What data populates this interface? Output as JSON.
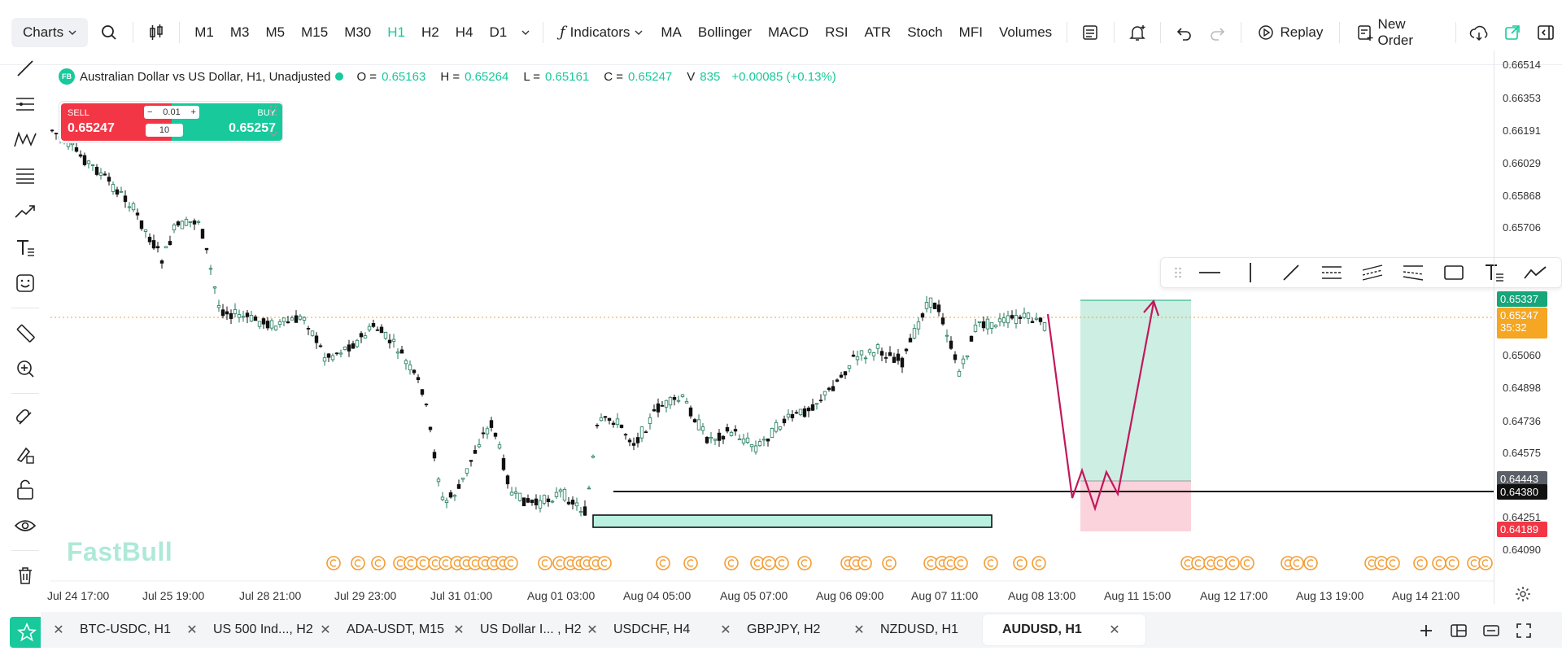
{
  "topbar": {
    "charts_label": "Charts",
    "timeframes": [
      "M1",
      "M3",
      "M5",
      "M15",
      "M30",
      "H1",
      "H2",
      "H4",
      "D1"
    ],
    "active_timeframe": "H1",
    "indicators_label": "Indicators",
    "indicator_shortcuts": [
      "MA",
      "Bollinger",
      "MACD",
      "RSI",
      "ATR",
      "Stoch",
      "MFI",
      "Volumes"
    ],
    "replay_label": "Replay",
    "new_order_label": "New Order"
  },
  "legend": {
    "badge": "FB",
    "symbol_title": "Australian Dollar vs US Dollar, H1, Unadjusted",
    "o_label": "O =",
    "o_value": "0.65163",
    "h_label": "H =",
    "h_value": "0.65264",
    "l_label": "L =",
    "l_value": "0.65161",
    "c_label": "C =",
    "c_value": "0.65247",
    "v_label": "V",
    "v_value": "835",
    "change": "+0.00085 (+0.13%)"
  },
  "trade_panel": {
    "sell_label": "SELL",
    "sell_price": "0.65247",
    "buy_label": "BUY",
    "buy_price": "0.65257",
    "lot": "0.01",
    "quantity": "10",
    "minus": "−",
    "plus": "+"
  },
  "watermark": "FastBull",
  "price_axis": {
    "ticks": [
      "0.66514",
      "0.66353",
      "0.66191",
      "0.66029",
      "0.65868",
      "0.65706",
      "0.65060",
      "0.64898",
      "0.64736",
      "0.64575",
      "0.64251",
      "0.64090"
    ],
    "tag_tp": "0.65337",
    "tag_current": "0.65247",
    "tag_countdown": "35:32",
    "tag_entry": "0.64443",
    "tag_line": "0.64380",
    "tag_sl": "0.64189"
  },
  "time_axis": [
    "Jul 24 17:00",
    "Jul 25 19:00",
    "Jul 28 21:00",
    "Jul 29 23:00",
    "Jul 31 01:00",
    "Aug 01 03:00",
    "Aug 04 05:00",
    "Aug 05 07:00",
    "Aug 06 09:00",
    "Aug 07 11:00",
    "Aug 08 13:00",
    "Aug 11 15:00",
    "Aug 12 17:00",
    "Aug 13 19:00",
    "Aug 14 21:00"
  ],
  "bottom_tabs": [
    {
      "name": "BTC-USDC, H1"
    },
    {
      "name": "US 500 Ind..., H2"
    },
    {
      "name": "ADA-USDT, M15"
    },
    {
      "name": "US Dollar I... , H2"
    },
    {
      "name": "USDCHF, H4"
    },
    {
      "name": "GBPJPY, H2"
    },
    {
      "name": "NZDUSD, H1"
    },
    {
      "name": "AUDUSD, H1"
    }
  ],
  "active_tab": "AUDUSD, H1",
  "colors": {
    "accent": "#17c99b",
    "sell": "#f23645",
    "tp_zone": "#cdeee3",
    "sl_zone": "#fbd3dc",
    "arrow": "#c2185b",
    "countdown_tag": "#f5a623"
  }
}
